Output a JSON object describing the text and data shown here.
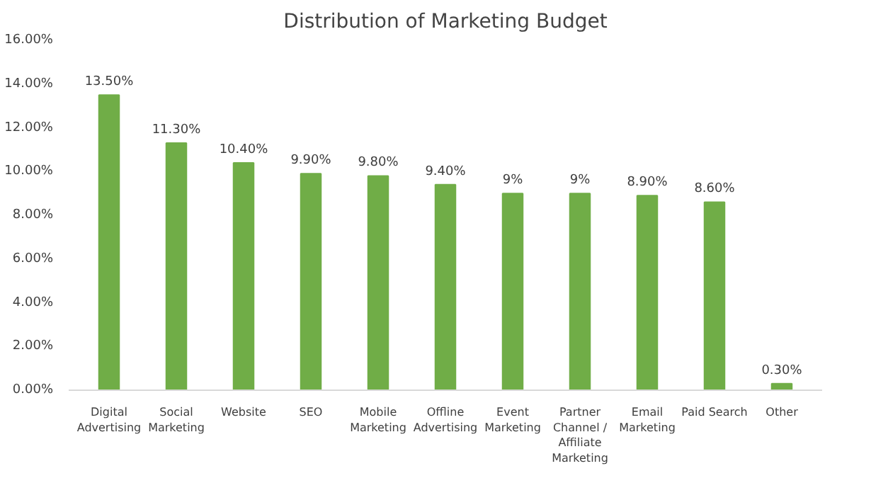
{
  "chart_data": {
    "type": "bar",
    "title": "Distribution of Marketing Budget",
    "categories": [
      "Digital Advertising",
      "Social Marketing",
      "Website",
      "SEO",
      "Mobile Marketing",
      "Offline Advertising",
      "Event Marketing",
      "Partner Channel / Affiliate Marketing",
      "Email Marketing",
      "Paid Search",
      "Other"
    ],
    "values": [
      13.5,
      11.3,
      10.4,
      9.9,
      9.8,
      9.4,
      9,
      9,
      8.9,
      8.6,
      0.3
    ],
    "value_labels": [
      "13.50%",
      "11.30%",
      "10.40%",
      "9.90%",
      "9.80%",
      "9.40%",
      "9%",
      "9%",
      "8.90%",
      "8.60%",
      "0.30%"
    ],
    "color": "#70ad47",
    "ylim": [
      0,
      16
    ],
    "yticks": [
      {
        "value": 0,
        "label": "0.00%"
      },
      {
        "value": 2,
        "label": "2.00%"
      },
      {
        "value": 4,
        "label": "4.00%"
      },
      {
        "value": 6,
        "label": "6.00%"
      },
      {
        "value": 8,
        "label": "8.00%"
      },
      {
        "value": 10,
        "label": "10.00%"
      },
      {
        "value": 12,
        "label": "12.00%"
      },
      {
        "value": 14,
        "label": "14.00%"
      },
      {
        "value": 16,
        "label": "16.00%"
      }
    ],
    "grid": false
  }
}
